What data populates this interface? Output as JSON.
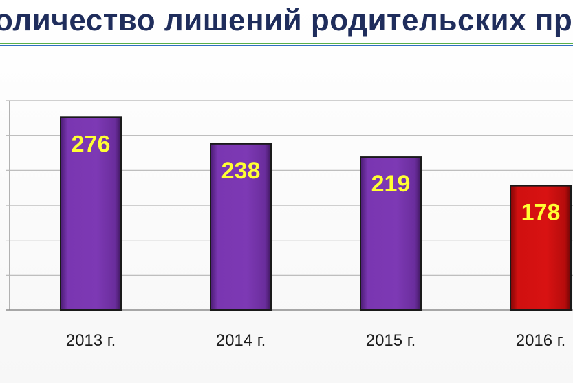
{
  "title": "оличество лишений родительских пра",
  "colors": {
    "title": "#1f2d5c",
    "bar_default": "#7a36b1",
    "bar_highlight": "#d01010",
    "label": "#ffff33"
  },
  "chart_data": {
    "type": "bar",
    "title": "",
    "xlabel": "",
    "ylabel": "",
    "categories": [
      "2013 г.",
      "2014 г.",
      "2015 г.",
      "2016 г."
    ],
    "values": [
      276,
      238,
      219,
      178
    ],
    "data_labels": [
      "276",
      "238",
      "219",
      "178"
    ],
    "highlight_index": 3,
    "ylim": [
      0,
      300
    ],
    "y_gridlines": [
      0,
      50,
      100,
      150,
      200,
      250,
      300
    ],
    "grid": true,
    "legend": "none"
  }
}
